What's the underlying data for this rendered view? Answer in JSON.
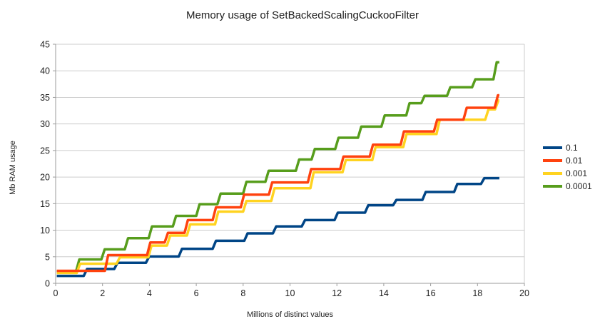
{
  "chart_data": {
    "type": "line",
    "line_style": "step",
    "title": "Memory usage of SetBackedScalingCuckooFilter",
    "xlabel": "Millions of distinct values",
    "ylabel": "Mb RAM usage",
    "xlim": [
      0,
      20
    ],
    "ylim": [
      0,
      45
    ],
    "xticks": [
      0,
      2,
      4,
      6,
      8,
      10,
      12,
      14,
      16,
      18,
      20
    ],
    "yticks": [
      0,
      5,
      10,
      15,
      20,
      25,
      30,
      35,
      40,
      45
    ],
    "grid": "horizontal-gridlines-on",
    "legend_position": "right-middle",
    "colors": {
      "axis": "#9b9b9b",
      "gridline": "#cccccc",
      "tick_text": "#222222"
    },
    "series": [
      {
        "name": "0.1",
        "color": "#004586",
        "start_x": 0.05,
        "start_value": 1.4,
        "end_x": 18.93,
        "steps": [
          [
            1.2,
            2.7
          ],
          [
            2.5,
            3.85
          ],
          [
            3.85,
            5.05
          ],
          [
            5.25,
            6.5
          ],
          [
            6.7,
            8.0
          ],
          [
            8.05,
            9.4
          ],
          [
            9.27,
            10.7
          ],
          [
            10.5,
            11.9
          ],
          [
            11.9,
            13.3
          ],
          [
            13.2,
            14.7
          ],
          [
            14.4,
            15.7
          ],
          [
            15.65,
            17.2
          ],
          [
            17.0,
            18.7
          ],
          [
            18.15,
            19.8
          ]
        ]
      },
      {
        "name": "0.01",
        "color": "#ff420e",
        "start_x": 0.05,
        "start_value": 2.35,
        "end_x": 18.93,
        "steps": [
          [
            2.1,
            5.3
          ],
          [
            3.9,
            7.7
          ],
          [
            4.65,
            9.5
          ],
          [
            5.5,
            11.9
          ],
          [
            6.7,
            14.3
          ],
          [
            7.9,
            16.7
          ],
          [
            9.1,
            19.0
          ],
          [
            10.76,
            21.5
          ],
          [
            12.14,
            23.85
          ],
          [
            13.4,
            26.1
          ],
          [
            14.72,
            28.6
          ],
          [
            16.14,
            30.8
          ],
          [
            17.4,
            33.05
          ],
          [
            18.73,
            35.4
          ]
        ]
      },
      {
        "name": "0.001",
        "color": "#ffd320",
        "start_x": 0.05,
        "start_value": 1.95,
        "end_x": 18.93,
        "steps": [
          [
            0.9,
            3.7
          ],
          [
            2.6,
            4.9
          ],
          [
            3.95,
            7.1
          ],
          [
            4.75,
            9.0
          ],
          [
            5.6,
            11.1
          ],
          [
            6.8,
            13.5
          ],
          [
            8.0,
            15.5
          ],
          [
            9.2,
            17.9
          ],
          [
            10.87,
            20.9
          ],
          [
            12.24,
            23.2
          ],
          [
            13.51,
            25.65
          ],
          [
            14.83,
            28.1
          ],
          [
            16.25,
            30.8
          ],
          [
            18.33,
            32.75
          ],
          [
            18.75,
            34.4
          ]
        ]
      },
      {
        "name": "0.0001",
        "color": "#579d1c",
        "start_x": 0.05,
        "start_value": 2.25,
        "end_x": 18.93,
        "steps": [
          [
            0.87,
            4.5
          ],
          [
            1.95,
            6.4
          ],
          [
            2.95,
            8.5
          ],
          [
            3.97,
            10.7
          ],
          [
            5.0,
            12.7
          ],
          [
            6.0,
            14.9
          ],
          [
            6.9,
            16.9
          ],
          [
            8.0,
            19.1
          ],
          [
            8.95,
            21.2
          ],
          [
            10.25,
            23.3
          ],
          [
            10.92,
            25.3
          ],
          [
            11.93,
            27.4
          ],
          [
            12.9,
            29.5
          ],
          [
            13.9,
            31.6
          ],
          [
            14.96,
            33.9
          ],
          [
            15.6,
            35.3
          ],
          [
            16.7,
            36.9
          ],
          [
            17.77,
            38.4
          ],
          [
            18.68,
            41.6
          ]
        ]
      }
    ],
    "legend_labels": [
      "0.1",
      "0.01",
      "0.001",
      "0.0001"
    ]
  }
}
